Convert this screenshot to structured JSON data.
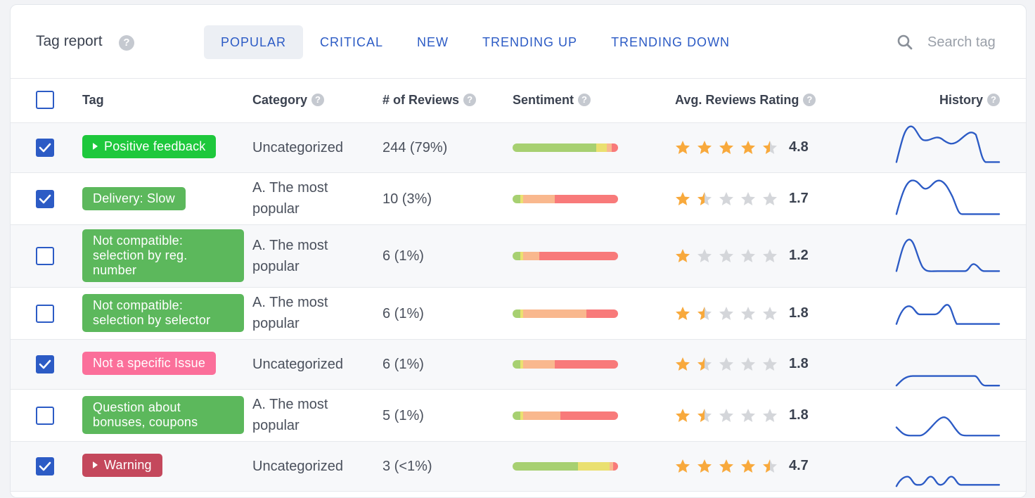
{
  "header": {
    "title": "Tag report",
    "help": "?",
    "tabs": [
      "POPULAR",
      "CRITICAL",
      "NEW",
      "TRENDING UP",
      "TRENDING DOWN"
    ],
    "active_tab": "POPULAR",
    "search_placeholder": "Search tag"
  },
  "columns": {
    "tag": "Tag",
    "category": "Category",
    "reviews": "# of Reviews",
    "sentiment": "Sentiment",
    "rating": "Avg. Reviews Rating",
    "history": "History"
  },
  "colors": {
    "accent": "#2c5bc5",
    "tag_green": "#5cb85c",
    "tag_bright_green": "#1ec83c",
    "tag_pink": "#fb6f9a",
    "tag_maroon": "#c4485c",
    "sentiment_green": "#a7d071",
    "sentiment_yellow": "#eae070",
    "sentiment_orange": "#f9b88e",
    "sentiment_salmon": "#fb9b7e",
    "sentiment_red": "#f87a7a",
    "star_filled": "#f8a93c",
    "star_empty": "#d4d6da",
    "history_line": "#2c5bc5"
  },
  "rows": [
    {
      "checked": true,
      "tag": "Positive feedback",
      "tag_icon": "play-icon",
      "category": "Uncategorized",
      "reviews": "244 (79%)",
      "rating": "4.8",
      "stars": 4.5,
      "sentiment": [
        0.79,
        0.1,
        0.05,
        0.06
      ]
    },
    {
      "checked": true,
      "tag": "Delivery: Slow",
      "tag_icon": "",
      "category": "A. The most popular",
      "reviews": "10 (3%)",
      "rating": "1.7",
      "stars": 1.5,
      "sentiment": [
        0.07,
        0.03,
        0.3,
        0.6
      ]
    },
    {
      "checked": false,
      "tag": "Not compatible: selection by reg. number",
      "tag_icon": "",
      "category": "A. The most popular",
      "reviews": "6 (1%)",
      "rating": "1.2",
      "stars": 1,
      "sentiment": [
        0.07,
        0.03,
        0.15,
        0.75
      ]
    },
    {
      "checked": false,
      "tag": "Not compatible: selection by selector",
      "tag_icon": "",
      "category": "A. The most popular",
      "reviews": "6 (1%)",
      "rating": "1.8",
      "stars": 1.5,
      "sentiment": [
        0.07,
        0.03,
        0.6,
        0.3
      ]
    },
    {
      "checked": true,
      "tag": "Not a specific Issue",
      "tag_icon": "",
      "category": "Uncategorized",
      "reviews": "6 (1%)",
      "rating": "1.8",
      "stars": 1.5,
      "sentiment": [
        0.07,
        0.03,
        0.3,
        0.6
      ]
    },
    {
      "checked": false,
      "tag": "Question about bonuses, coupons",
      "tag_icon": "",
      "category": "A. The most popular",
      "reviews": "5 (1%)",
      "rating": "1.8",
      "stars": 1.5,
      "sentiment": [
        0.07,
        0.03,
        0.35,
        0.55
      ]
    },
    {
      "checked": true,
      "tag": "Warning",
      "tag_icon": "play-icon",
      "category": "Uncategorized",
      "reviews": "3 (<1%)",
      "rating": "4.7",
      "stars": 4.5,
      "sentiment": [
        0.62,
        0.3,
        0.03,
        0.05
      ]
    }
  ]
}
